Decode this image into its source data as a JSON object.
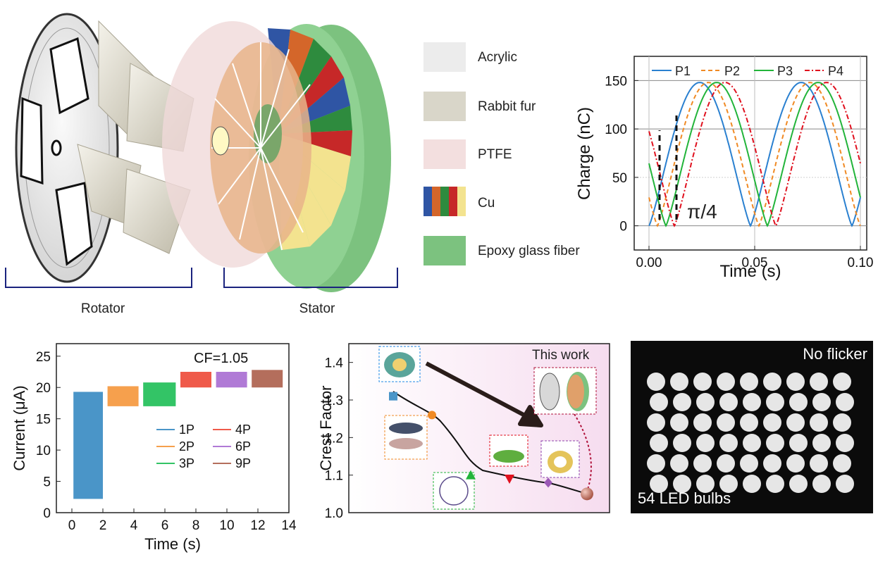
{
  "legend_materials": [
    {
      "label": "Acrylic",
      "color": "#ececec"
    },
    {
      "label": "Rabbit fur",
      "color": "#d9d6c9"
    },
    {
      "label": "PTFE",
      "color": "#f3dfdf"
    },
    {
      "label": "Cu",
      "colors": [
        "#2f55a4",
        "#d4662a",
        "#2e8b3e",
        "#c62828",
        "#f3e38f"
      ]
    },
    {
      "label": "Epoxy glass fiber",
      "color": "#7cc27f"
    }
  ],
  "device_labels": {
    "rotator": "Rotator",
    "stator": "Stator"
  },
  "photo": {
    "top_label": "No flicker",
    "bottom_label": "54 LED bulbs",
    "bulbs": 54
  },
  "chart_data": [
    {
      "type": "line",
      "xlabel": "Time (s)",
      "ylabel": "Charge (nC)",
      "xlim": [
        -0.007,
        0.103
      ],
      "ylim": [
        -25,
        175
      ],
      "xticks": [
        "0.00",
        "0.05",
        "0.10"
      ],
      "yticks": [
        "0",
        "50",
        "100",
        "150"
      ],
      "grid": true,
      "legend_position": "top",
      "annotation": "π/4",
      "period": 0.048,
      "amplitude": 148,
      "series": [
        {
          "name": "P1",
          "phase_offset": 0.0,
          "color": "#2a80d0",
          "dash": "solid"
        },
        {
          "name": "P2",
          "phase_offset": 0.004,
          "color": "#f08a24",
          "dash": "dash"
        },
        {
          "name": "P3",
          "phase_offset": 0.008,
          "color": "#22b43a",
          "dash": "solid"
        },
        {
          "name": "P4",
          "phase_offset": 0.012,
          "color": "#e0101e",
          "dash": "dashdot"
        }
      ]
    },
    {
      "type": "bar",
      "xlabel": "Time (s)",
      "ylabel": "Current (μA)",
      "xlim": [
        -1,
        14
      ],
      "ylim": [
        0,
        27
      ],
      "xticks": [
        "0",
        "2",
        "4",
        "6",
        "8",
        "10",
        "12",
        "14"
      ],
      "yticks": [
        "0",
        "5",
        "10",
        "15",
        "20",
        "25"
      ],
      "annotation": "CF=1.05",
      "series": [
        {
          "name": "1P",
          "t_start": 0.1,
          "t_end": 2.0,
          "low": 2.2,
          "high": 19.3,
          "color": "#4a95c8"
        },
        {
          "name": "2P",
          "t_start": 2.3,
          "t_end": 4.3,
          "low": 17.0,
          "high": 20.2,
          "color": "#f6a04d"
        },
        {
          "name": "3P",
          "t_start": 4.6,
          "t_end": 6.7,
          "low": 17.0,
          "high": 20.8,
          "color": "#33c466"
        },
        {
          "name": "4P",
          "t_start": 7.0,
          "t_end": 9.0,
          "low": 20.0,
          "high": 22.5,
          "color": "#ef5a4a"
        },
        {
          "name": "6P",
          "t_start": 9.3,
          "t_end": 11.3,
          "low": 20.0,
          "high": 22.5,
          "color": "#b07ad6"
        },
        {
          "name": "9P",
          "t_start": 11.6,
          "t_end": 13.6,
          "low": 20.0,
          "high": 22.8,
          "color": "#b46e5c"
        }
      ]
    },
    {
      "type": "scatter",
      "ylabel": "Crest Factor",
      "ylim": [
        1.0,
        1.45
      ],
      "yticks": [
        "1.0",
        "1.1",
        "1.2",
        "1.3",
        "1.4"
      ],
      "annotation": "This work",
      "points": [
        {
          "x": 1,
          "y": 1.31,
          "marker": "square",
          "color": "#4a95c8"
        },
        {
          "x": 2,
          "y": 1.26,
          "marker": "circle",
          "color": "#f08a24"
        },
        {
          "x": 3,
          "y": 1.1,
          "marker": "triangle-up",
          "color": "#22b43a"
        },
        {
          "x": 4,
          "y": 1.09,
          "marker": "triangle-down",
          "color": "#e0101e"
        },
        {
          "x": 5,
          "y": 1.08,
          "marker": "diamond",
          "color": "#9b59b6"
        },
        {
          "x": 6,
          "y": 1.05,
          "marker": "sphere",
          "color": "#b56a5a"
        }
      ]
    }
  ]
}
